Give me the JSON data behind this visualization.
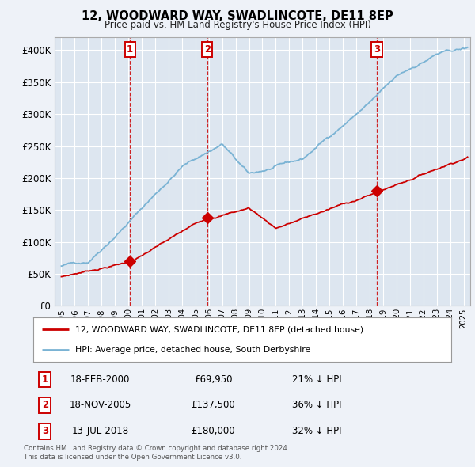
{
  "title": "12, WOODWARD WAY, SWADLINCOTE, DE11 8EP",
  "subtitle": "Price paid vs. HM Land Registry's House Price Index (HPI)",
  "legend_line1": "12, WOODWARD WAY, SWADLINCOTE, DE11 8EP (detached house)",
  "legend_line2": "HPI: Average price, detached house, South Derbyshire",
  "footer1": "Contains HM Land Registry data © Crown copyright and database right 2024.",
  "footer2": "This data is licensed under the Open Government Licence v3.0.",
  "transactions": [
    {
      "num": "1",
      "date": "18-FEB-2000",
      "price": "£69,950",
      "hpi": "21% ↓ HPI",
      "x_year": 2000.12
    },
    {
      "num": "2",
      "date": "18-NOV-2005",
      "price": "£137,500",
      "hpi": "36% ↓ HPI",
      "x_year": 2005.88
    },
    {
      "num": "3",
      "date": "13-JUL-2018",
      "price": "£180,000",
      "hpi": "32% ↓ HPI",
      "x_year": 2018.53
    }
  ],
  "transaction_values": [
    69950,
    137500,
    180000
  ],
  "transaction_years": [
    2000.12,
    2005.88,
    2018.53
  ],
  "ylim": [
    0,
    420000
  ],
  "xlim_start": 1994.5,
  "xlim_end": 2025.5,
  "hpi_color": "#7ab3d4",
  "price_color": "#cc0000",
  "vline_color": "#cc0000",
  "background_color": "#eef2f8",
  "plot_bg": "#dde6f0"
}
